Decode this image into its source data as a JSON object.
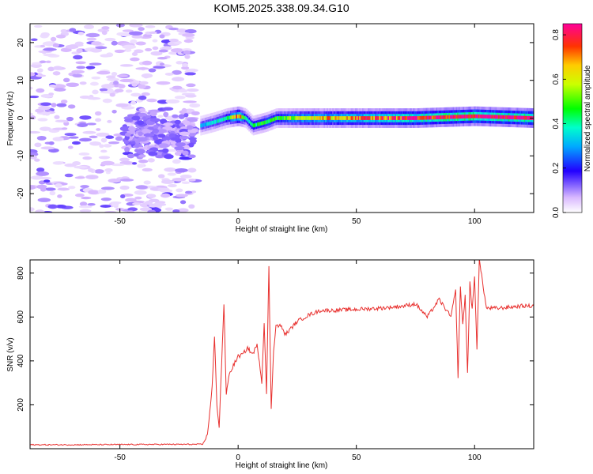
{
  "title": "KOM5.2025.338.09.34.G10",
  "chart_data": [
    {
      "type": "heatmap",
      "xlabel": "Height of straight line (km)",
      "ylabel": "Frequency (Hz)",
      "xlim": [
        -88,
        125
      ],
      "ylim": [
        -25,
        25
      ],
      "xticks": [
        -50,
        0,
        50,
        100
      ],
      "yticks": [
        -20,
        -10,
        0,
        10,
        20
      ],
      "grid": false,
      "colorbar": {
        "label": "Normalized spectral amplitude",
        "range": [
          0,
          0.85
        ],
        "ticks": [
          0.0,
          0.2,
          0.4,
          0.6,
          0.8
        ]
      },
      "features": {
        "noise_region_x": [
          -88,
          -18
        ],
        "dense_band": {
          "x": [
            -48,
            -18
          ],
          "y_center": -4,
          "amplitude": 0.1
        },
        "signal_trace": {
          "x": [
            -16,
            -10,
            -5,
            0,
            3,
            6,
            9,
            12,
            16,
            25,
            50,
            75,
            100,
            125
          ],
          "frequency": [
            -2,
            -1,
            0,
            0.5,
            0,
            -2,
            -1.5,
            -1,
            0,
            0,
            0,
            0,
            0.5,
            0
          ],
          "peak_amplitude": [
            0.3,
            0.35,
            0.4,
            0.75,
            0.4,
            0.4,
            0.45,
            0.45,
            0.45,
            0.6,
            0.7,
            0.8,
            0.85,
            0.85
          ]
        }
      }
    },
    {
      "type": "line",
      "xlabel": "Height of straight line (km)",
      "ylabel": "SNR (v/v)",
      "xlim": [
        -88,
        125
      ],
      "ylim": [
        0,
        860
      ],
      "xticks": [
        -50,
        0,
        50,
        100
      ],
      "yticks": [
        200,
        400,
        600,
        800
      ],
      "grid": false,
      "series": [
        {
          "color": "#e8302e",
          "x": [
            -88,
            -70,
            -50,
            -30,
            -15,
            -13,
            -11,
            -10,
            -9,
            -8,
            -7,
            -6,
            -5,
            -4,
            -2,
            0,
            2,
            4,
            6,
            8,
            9,
            10,
            11,
            12,
            13,
            14,
            15,
            16,
            18,
            20,
            25,
            30,
            35,
            40,
            50,
            60,
            70,
            75,
            80,
            85,
            90,
            92,
            93,
            94,
            95,
            96,
            97,
            98,
            99,
            100,
            101,
            102,
            105,
            110,
            115,
            120,
            125
          ],
          "y": [
            18,
            18,
            19,
            20,
            20,
            60,
            280,
            510,
            200,
            100,
            380,
            660,
            240,
            330,
            380,
            420,
            430,
            460,
            430,
            470,
            400,
            300,
            580,
            250,
            830,
            180,
            450,
            560,
            560,
            520,
            580,
            610,
            630,
            630,
            635,
            640,
            650,
            660,
            600,
            680,
            600,
            720,
            330,
            740,
            560,
            700,
            340,
            760,
            630,
            780,
            460,
            860,
            640,
            640,
            645,
            650,
            650
          ]
        }
      ]
    }
  ]
}
